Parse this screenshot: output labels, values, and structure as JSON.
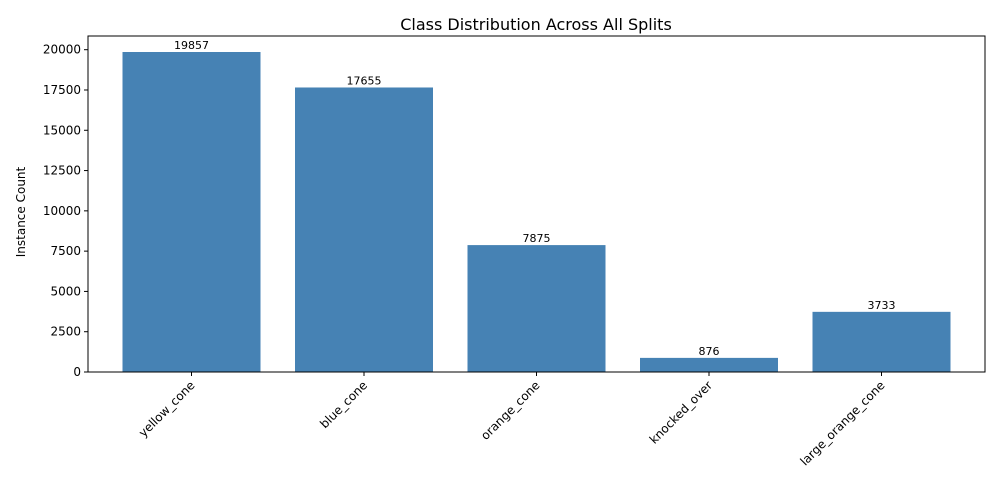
{
  "chart_data": {
    "type": "bar",
    "title": "Class Distribution Across All Splits",
    "xlabel": "",
    "ylabel": "Instance Count",
    "categories": [
      "yellow_cone",
      "blue_cone",
      "orange_cone",
      "knocked_over",
      "large_orange_cone"
    ],
    "values": [
      19857,
      17655,
      7875,
      876,
      3733
    ],
    "yticks": [
      0,
      2500,
      5000,
      7500,
      10000,
      12500,
      15000,
      17500,
      20000
    ],
    "ylim": [
      0,
      20850
    ],
    "bar_color": "#4682b4",
    "grid": false,
    "legend": "none"
  }
}
